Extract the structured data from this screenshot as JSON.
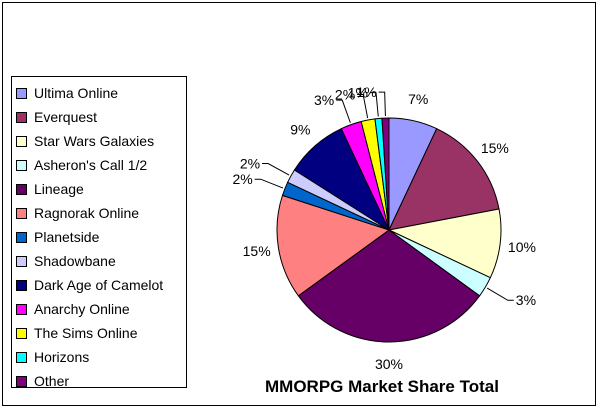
{
  "chart_data": {
    "type": "pie",
    "title": "MMORPG Market Share Total",
    "legend_position": "left",
    "slices": [
      {
        "label": "Ultima Online",
        "value": 7,
        "value_label": "7%",
        "color": "#9999ff"
      },
      {
        "label": "Everquest",
        "value": 15,
        "value_label": "15%",
        "color": "#993366"
      },
      {
        "label": "Star Wars Galaxies",
        "value": 10,
        "value_label": "10%",
        "color": "#ffffcc"
      },
      {
        "label": "Asheron's Call 1/2",
        "value": 3,
        "value_label": "3%",
        "color": "#ccffff"
      },
      {
        "label": "Lineage",
        "value": 30,
        "value_label": "30%",
        "color": "#660066"
      },
      {
        "label": "Ragnorak Online",
        "value": 15,
        "value_label": "15%",
        "color": "#ff8080"
      },
      {
        "label": "Planetside",
        "value": 2,
        "value_label": "2%",
        "color": "#0066cc"
      },
      {
        "label": "Shadowbane",
        "value": 2,
        "value_label": "2%",
        "color": "#ccccff"
      },
      {
        "label": "Dark Age of Camelot",
        "value": 9,
        "value_label": "9%",
        "color": "#000080"
      },
      {
        "label": "Anarchy Online",
        "value": 3,
        "value_label": "3%",
        "color": "#ff00ff"
      },
      {
        "label": "The Sims Online",
        "value": 2,
        "value_label": "2%",
        "color": "#ffff00"
      },
      {
        "label": "Horizons",
        "value": 1,
        "value_label": "1%",
        "color": "#00ffff"
      },
      {
        "label": "Other",
        "value": 1,
        "value_label": "1%",
        "color": "#800080"
      }
    ]
  }
}
